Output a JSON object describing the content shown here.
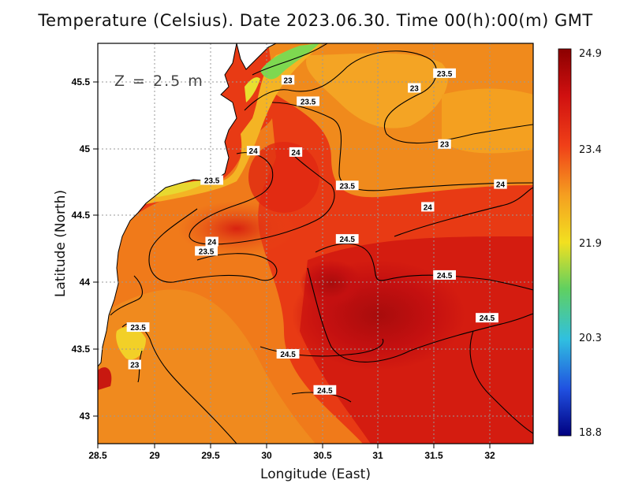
{
  "title": "Temperature (Celsius). Date 2023.06.30. Time 00(h):00(m) GMT",
  "depth_label": "Z = 2.5 m",
  "x_axis_label": "Longitude (East)",
  "y_axis_label": "Latitude (North)",
  "x_ticks": [
    "28.5",
    "29",
    "29.5",
    "30",
    "30.5",
    "31",
    "31.5",
    "32"
  ],
  "y_ticks": [
    "45.5",
    "45",
    "44.5",
    "44",
    "43.5",
    "43"
  ],
  "colorbar_labels": [
    "24.9",
    "23.4",
    "21.9",
    "20.3",
    "18.8"
  ],
  "colors": {
    "max": "#8b0000",
    "high": "#e02010",
    "mid_high": "#f07818",
    "mid": "#f5a020",
    "yellow": "#f2e020",
    "green": "#60d060",
    "cyan": "#30c0e0",
    "blue": "#2050e0",
    "min": "#000080",
    "land": "#ffffff"
  },
  "contour_labels": [
    {
      "text": "23",
      "lon": 30.2,
      "lat": 45.51
    },
    {
      "text": "23.5",
      "lon": 31.6,
      "lat": 45.56
    },
    {
      "text": "23",
      "lon": 31.33,
      "lat": 45.45
    },
    {
      "text": "23.5",
      "lon": 30.38,
      "lat": 45.35
    },
    {
      "text": "23",
      "lon": 31.6,
      "lat": 45.03
    },
    {
      "text": "24",
      "lon": 29.89,
      "lat": 44.98
    },
    {
      "text": "24",
      "lon": 30.27,
      "lat": 44.97
    },
    {
      "text": "23.5",
      "lon": 29.52,
      "lat": 44.76
    },
    {
      "text": "23.5",
      "lon": 30.73,
      "lat": 44.72
    },
    {
      "text": "24",
      "lon": 32.1,
      "lat": 44.73
    },
    {
      "text": "24",
      "lon": 31.45,
      "lat": 44.56
    },
    {
      "text": "24",
      "lon": 29.52,
      "lat": 44.3
    },
    {
      "text": "23.5",
      "lon": 29.47,
      "lat": 44.23
    },
    {
      "text": "24.5",
      "lon": 30.73,
      "lat": 44.32
    },
    {
      "text": "24.5",
      "lon": 31.6,
      "lat": 44.05
    },
    {
      "text": "24.5",
      "lon": 31.98,
      "lat": 43.73
    },
    {
      "text": "23.5",
      "lon": 28.86,
      "lat": 43.66
    },
    {
      "text": "24.5",
      "lon": 30.2,
      "lat": 43.46
    },
    {
      "text": "23",
      "lon": 28.83,
      "lat": 43.38
    },
    {
      "text": "24.5",
      "lon": 30.53,
      "lat": 43.19
    }
  ]
}
